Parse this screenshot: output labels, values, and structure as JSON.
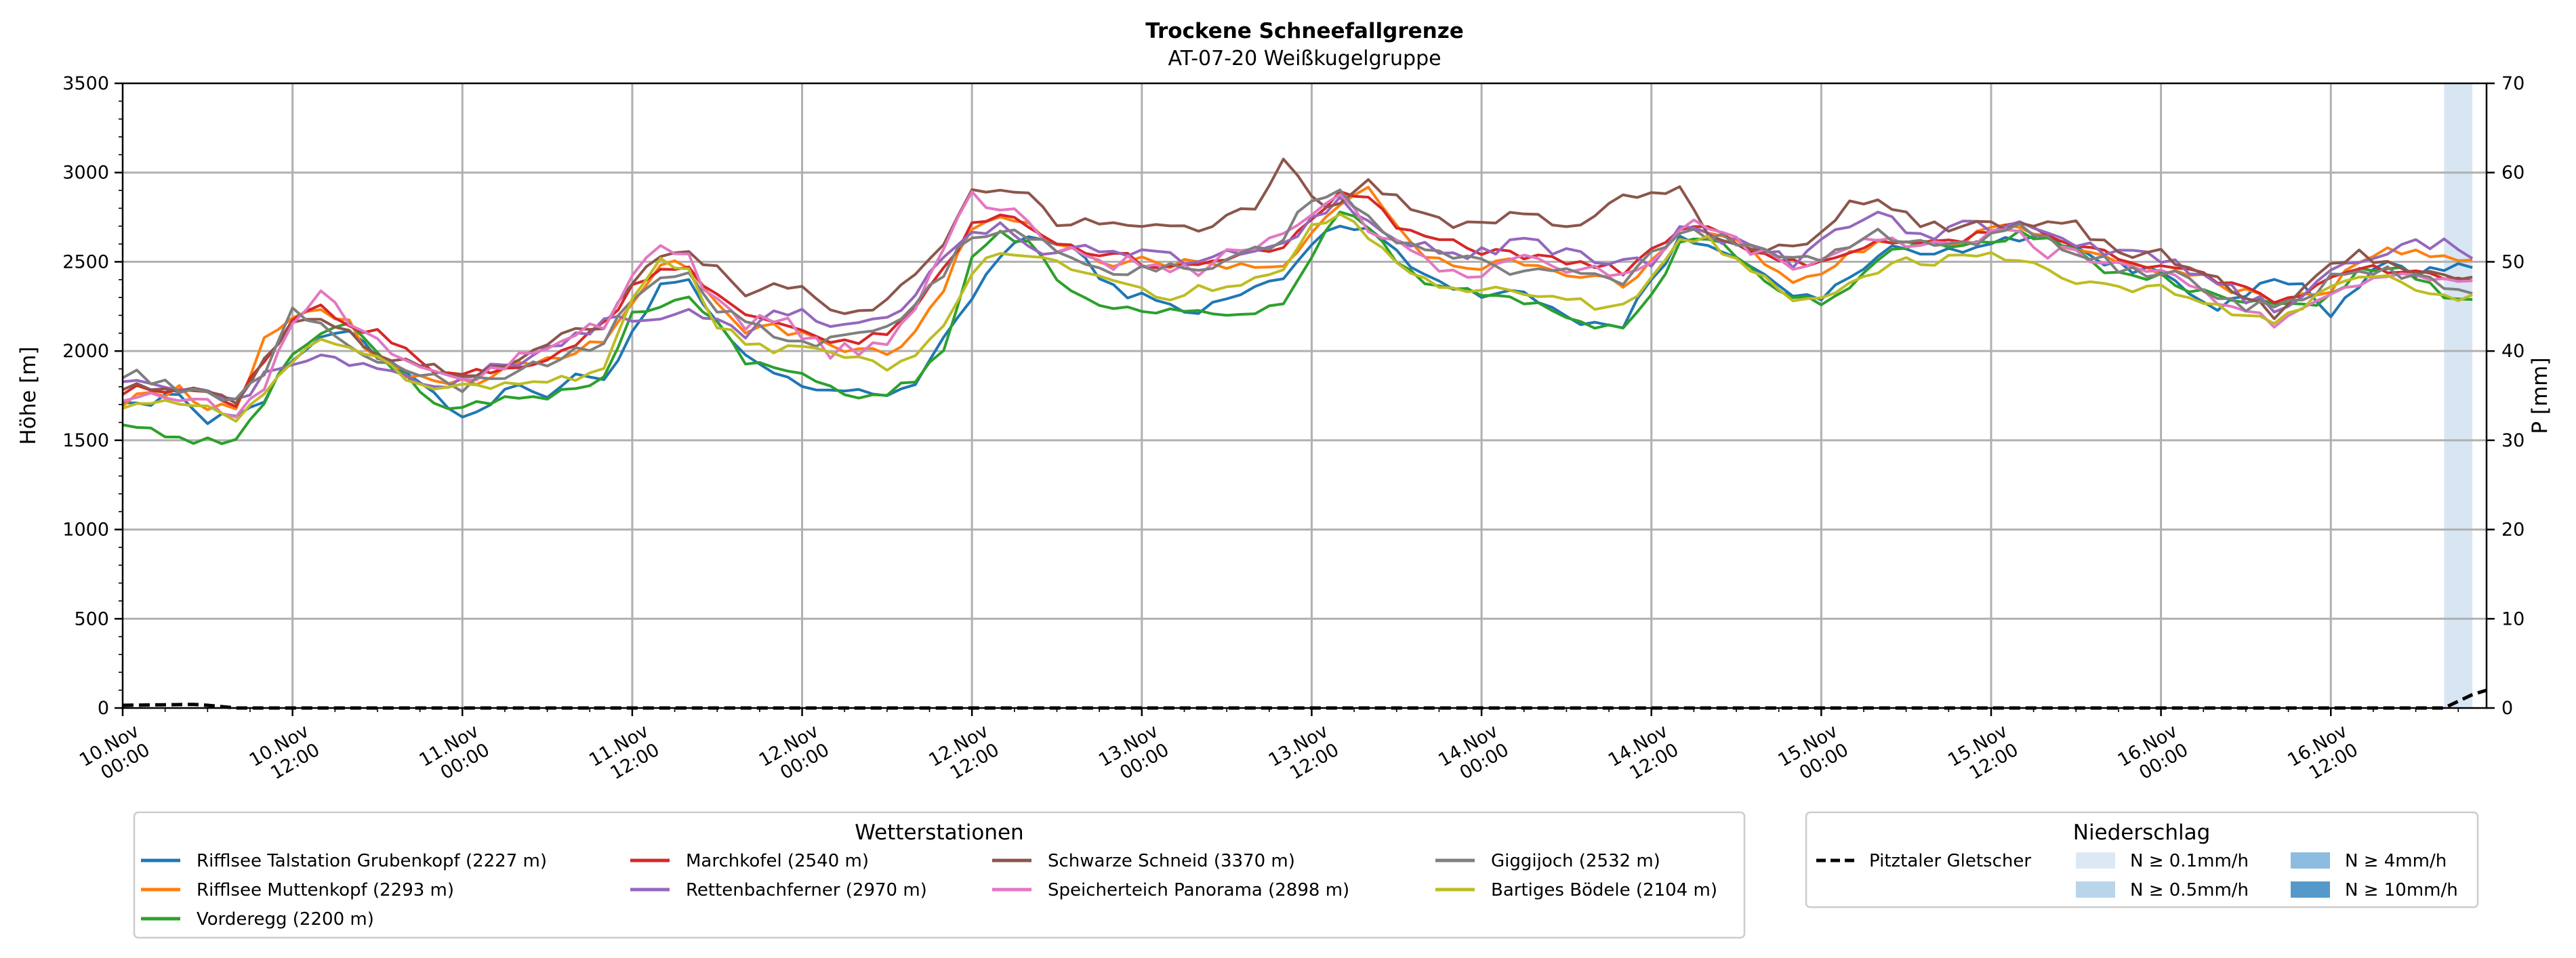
{
  "chart_data": {
    "type": "line",
    "title": "Trockene Schneefallgrenze",
    "subtitle": "AT-07-20 Weißkugelgruppe",
    "ylabel": "Höhe [m]",
    "y2label": "P [mm]",
    "ylim": [
      0,
      3500
    ],
    "y2lim": [
      0,
      70
    ],
    "yticks": [
      "0",
      "500",
      "1000",
      "1500",
      "2000",
      "2500",
      "3000",
      "3500"
    ],
    "y2ticks": [
      "0",
      "10",
      "20",
      "30",
      "40",
      "50",
      "60",
      "70"
    ],
    "xlim_hours": [
      0,
      167
    ],
    "xticks": [
      {
        "hour": 0,
        "line1": "10.Nov",
        "line2": "00:00"
      },
      {
        "hour": 12,
        "line1": "10.Nov",
        "line2": "12:00"
      },
      {
        "hour": 24,
        "line1": "11.Nov",
        "line2": "00:00"
      },
      {
        "hour": 36,
        "line1": "11.Nov",
        "line2": "12:00"
      },
      {
        "hour": 48,
        "line1": "12.Nov",
        "line2": "00:00"
      },
      {
        "hour": 60,
        "line1": "12.Nov",
        "line2": "12:00"
      },
      {
        "hour": 72,
        "line1": "13.Nov",
        "line2": "00:00"
      },
      {
        "hour": 84,
        "line1": "13.Nov",
        "line2": "12:00"
      },
      {
        "hour": 96,
        "line1": "14.Nov",
        "line2": "00:00"
      },
      {
        "hour": 108,
        "line1": "14.Nov",
        "line2": "12:00"
      },
      {
        "hour": 120,
        "line1": "15.Nov",
        "line2": "00:00"
      },
      {
        "hour": 132,
        "line1": "15.Nov",
        "line2": "12:00"
      },
      {
        "hour": 144,
        "line1": "16.Nov",
        "line2": "00:00"
      },
      {
        "hour": 156,
        "line1": "16.Nov",
        "line2": "12:00"
      }
    ],
    "grid": true,
    "anchor_hours": [
      0,
      2,
      4,
      6,
      8,
      10,
      12,
      14,
      16,
      18,
      20,
      22,
      24,
      26,
      28,
      30,
      32,
      34,
      36,
      38,
      40,
      42,
      44,
      46,
      48,
      50,
      52,
      54,
      56,
      58,
      60,
      62,
      64,
      66,
      68,
      70,
      72,
      74,
      76,
      78,
      80,
      82,
      84,
      86,
      88,
      90,
      92,
      94,
      96,
      98,
      100,
      102,
      104,
      106,
      108,
      110,
      112,
      114,
      116,
      118,
      120,
      122,
      124,
      126,
      128,
      130,
      132,
      134,
      136,
      138,
      140,
      142,
      144,
      146,
      148,
      150,
      152,
      154,
      156,
      158,
      160,
      162,
      164,
      166
    ],
    "series": [
      {
        "name": "Rifflsee Talstation Grubenkopf (2227 m)",
        "color": "#1f77b4",
        "jitter": 30,
        "values": [
          1740,
          1700,
          1760,
          1620,
          1650,
          1730,
          1950,
          2050,
          2130,
          1980,
          1900,
          1750,
          1650,
          1700,
          1820,
          1750,
          1850,
          1850,
          2100,
          2350,
          2380,
          2150,
          1950,
          1880,
          1800,
          1760,
          1790,
          1760,
          1820,
          2050,
          2300,
          2550,
          2640,
          2600,
          2520,
          2350,
          2300,
          2250,
          2230,
          2280,
          2360,
          2400,
          2600,
          2700,
          2700,
          2550,
          2450,
          2350,
          2300,
          2350,
          2300,
          2200,
          2150,
          2150,
          2400,
          2620,
          2600,
          2550,
          2450,
          2280,
          2300,
          2400,
          2550,
          2580,
          2560,
          2550,
          2600,
          2640,
          2650,
          2580,
          2500,
          2450,
          2450,
          2350,
          2250,
          2300,
          2400,
          2350,
          2200,
          2380,
          2480,
          2420,
          2480,
          2480
        ]
      },
      {
        "name": "Rifflsee Muttenkopf (2293 m)",
        "color": "#ff7f0e",
        "jitter": 30,
        "values": [
          1720,
          1760,
          1780,
          1700,
          1650,
          2050,
          2200,
          2250,
          2150,
          1950,
          1880,
          1850,
          1820,
          1860,
          1920,
          1950,
          2000,
          2050,
          2250,
          2500,
          2480,
          2250,
          2100,
          2150,
          2080,
          2020,
          2000,
          1990,
          2100,
          2350,
          2700,
          2750,
          2720,
          2600,
          2550,
          2500,
          2520,
          2480,
          2500,
          2450,
          2480,
          2500,
          2650,
          2800,
          2900,
          2700,
          2550,
          2450,
          2480,
          2520,
          2450,
          2450,
          2400,
          2380,
          2500,
          2700,
          2680,
          2620,
          2500,
          2400,
          2450,
          2550,
          2620,
          2600,
          2600,
          2620,
          2700,
          2720,
          2620,
          2580,
          2520,
          2480,
          2450,
          2420,
          2380,
          2320,
          2260,
          2300,
          2350,
          2500,
          2550,
          2550,
          2520,
          2480
        ]
      },
      {
        "name": "Vorderegg (2200 m)",
        "color": "#2ca02c",
        "jitter": 25,
        "values": [
          1610,
          1550,
          1520,
          1490,
          1500,
          1700,
          2000,
          2100,
          2150,
          2000,
          1850,
          1700,
          1680,
          1720,
          1750,
          1750,
          1780,
          1850,
          2200,
          2250,
          2300,
          2150,
          1950,
          1900,
          1880,
          1800,
          1760,
          1760,
          1850,
          2000,
          2550,
          2650,
          2620,
          2400,
          2300,
          2250,
          2230,
          2220,
          2210,
          2190,
          2230,
          2260,
          2500,
          2800,
          2700,
          2500,
          2400,
          2350,
          2300,
          2300,
          2250,
          2180,
          2150,
          2150,
          2300,
          2600,
          2650,
          2550,
          2400,
          2300,
          2280,
          2350,
          2500,
          2600,
          2600,
          2580,
          2620,
          2650,
          2650,
          2550,
          2450,
          2400,
          2420,
          2350,
          2300,
          2280,
          2250,
          2250,
          2300,
          2450,
          2480,
          2420,
          2300,
          2280
        ]
      },
      {
        "name": "Marchkofel (2540 m)",
        "color": "#d62728",
        "jitter": 25,
        "values": [
          1780,
          1800,
          1760,
          1750,
          1700,
          1950,
          2150,
          2250,
          2150,
          2100,
          2000,
          1900,
          1880,
          1900,
          1900,
          1950,
          2050,
          2150,
          2350,
          2450,
          2450,
          2300,
          2200,
          2150,
          2100,
          2050,
          2050,
          2100,
          2250,
          2450,
          2700,
          2770,
          2700,
          2600,
          2550,
          2550,
          2500,
          2480,
          2500,
          2500,
          2550,
          2600,
          2750,
          2900,
          2850,
          2700,
          2620,
          2600,
          2550,
          2550,
          2520,
          2500,
          2480,
          2450,
          2550,
          2700,
          2680,
          2600,
          2550,
          2500,
          2480,
          2550,
          2600,
          2620,
          2620,
          2620,
          2680,
          2700,
          2650,
          2580,
          2550,
          2500,
          2480,
          2450,
          2400,
          2350,
          2250,
          2300,
          2400,
          2480,
          2450,
          2450,
          2420,
          2400
        ]
      },
      {
        "name": "Rettenbachferner (2970 m)",
        "color": "#9467bd",
        "jitter": 35,
        "values": [
          1860,
          1830,
          1780,
          1750,
          1700,
          1850,
          1900,
          1950,
          1950,
          1900,
          1850,
          1800,
          1820,
          1900,
          1950,
          2000,
          2100,
          2150,
          2200,
          2150,
          2250,
          2150,
          2100,
          2200,
          2250,
          2150,
          2150,
          2200,
          2300,
          2550,
          2650,
          2700,
          2600,
          2550,
          2600,
          2550,
          2550,
          2520,
          2500,
          2550,
          2550,
          2600,
          2750,
          2850,
          2750,
          2650,
          2580,
          2550,
          2550,
          2600,
          2600,
          2550,
          2500,
          2480,
          2500,
          2700,
          2650,
          2600,
          2550,
          2500,
          2600,
          2700,
          2800,
          2650,
          2650,
          2700,
          2700,
          2700,
          2650,
          2600,
          2550,
          2550,
          2520,
          2450,
          2380,
          2300,
          2250,
          2300,
          2450,
          2500,
          2550,
          2600,
          2600,
          2550
        ]
      },
      {
        "name": "Schwarze Schneid (3370 m)",
        "color": "#8c564b",
        "jitter": 30,
        "values": [
          1810,
          1780,
          1800,
          1750,
          1700,
          1950,
          2150,
          2200,
          2100,
          2000,
          1950,
          1900,
          1850,
          1900,
          1950,
          2050,
          2100,
          2150,
          2400,
          2550,
          2550,
          2450,
          2300,
          2350,
          2350,
          2250,
          2200,
          2300,
          2400,
          2600,
          2900,
          2920,
          2900,
          2700,
          2750,
          2700,
          2700,
          2700,
          2650,
          2750,
          2800,
          3100,
          2850,
          2800,
          2950,
          2850,
          2750,
          2720,
          2720,
          2750,
          2750,
          2700,
          2750,
          2850,
          2900,
          2900,
          2650,
          2600,
          2550,
          2600,
          2650,
          2850,
          2850,
          2750,
          2700,
          2700,
          2700,
          2700,
          2700,
          2700,
          2600,
          2550,
          2550,
          2450,
          2400,
          2300,
          2200,
          2350,
          2500,
          2550,
          2500,
          2450,
          2420,
          2400
        ]
      },
      {
        "name": "Speicherteich Panorama (2898 m)",
        "color": "#e377c2",
        "jitter": 45,
        "values": [
          1760,
          1740,
          1720,
          1700,
          1650,
          1800,
          2150,
          2350,
          2150,
          2050,
          1950,
          1900,
          1850,
          1900,
          1950,
          2000,
          2100,
          2150,
          2450,
          2600,
          2500,
          2250,
          2150,
          2200,
          2100,
          2000,
          2000,
          2050,
          2250,
          2550,
          2900,
          2780,
          2750,
          2550,
          2550,
          2500,
          2500,
          2480,
          2450,
          2550,
          2600,
          2650,
          2800,
          2900,
          2700,
          2600,
          2500,
          2450,
          2450,
          2550,
          2500,
          2480,
          2450,
          2400,
          2500,
          2700,
          2700,
          2600,
          2550,
          2450,
          2500,
          2600,
          2600,
          2600,
          2600,
          2650,
          2650,
          2650,
          2550,
          2550,
          2500,
          2480,
          2450,
          2380,
          2300,
          2200,
          2150,
          2250,
          2350,
          2400,
          2400,
          2420,
          2420,
          2400
        ]
      },
      {
        "name": "Giggijoch (2532 m)",
        "color": "#7f7f7f",
        "jitter": 35,
        "values": [
          1880,
          1850,
          1800,
          1750,
          1700,
          1900,
          2250,
          2150,
          2050,
          1950,
          1900,
          1850,
          1800,
          1850,
          1900,
          1950,
          2000,
          2050,
          2300,
          2400,
          2450,
          2250,
          2150,
          2100,
          2050,
          2050,
          2100,
          2150,
          2250,
          2450,
          2650,
          2700,
          2650,
          2550,
          2500,
          2450,
          2450,
          2480,
          2450,
          2500,
          2550,
          2650,
          2850,
          2900,
          2750,
          2600,
          2550,
          2550,
          2500,
          2450,
          2450,
          2450,
          2400,
          2350,
          2550,
          2650,
          2650,
          2600,
          2550,
          2500,
          2500,
          2600,
          2650,
          2600,
          2600,
          2600,
          2650,
          2700,
          2650,
          2550,
          2500,
          2450,
          2450,
          2380,
          2300,
          2250,
          2250,
          2300,
          2400,
          2450,
          2450,
          2400,
          2380,
          2350
        ]
      },
      {
        "name": "Bartiges Bödele (2104 m)",
        "color": "#bcbd22",
        "jitter": 25,
        "values": [
          1700,
          1720,
          1700,
          1680,
          1600,
          1750,
          1950,
          2050,
          2000,
          1950,
          1850,
          1800,
          1800,
          1800,
          1800,
          1830,
          1850,
          1900,
          2300,
          2500,
          2450,
          2150,
          2050,
          2000,
          2050,
          1980,
          1950,
          1900,
          1950,
          2150,
          2450,
          2550,
          2550,
          2500,
          2450,
          2400,
          2350,
          2300,
          2350,
          2350,
          2400,
          2450,
          2700,
          2750,
          2650,
          2500,
          2400,
          2350,
          2350,
          2350,
          2300,
          2300,
          2250,
          2250,
          2400,
          2650,
          2620,
          2500,
          2400,
          2300,
          2300,
          2400,
          2450,
          2500,
          2500,
          2550,
          2550,
          2500,
          2450,
          2400,
          2380,
          2350,
          2350,
          2300,
          2250,
          2200,
          2150,
          2250,
          2350,
          2400,
          2400,
          2350,
          2300,
          2300
        ]
      }
    ],
    "precipitation": {
      "name": "Pitztaler Gletscher",
      "color": "#000000",
      "points": [
        [
          0,
          0.3
        ],
        [
          5,
          0.4
        ],
        [
          6,
          0.3
        ],
        [
          8,
          0
        ],
        [
          164,
          0
        ],
        [
          166,
          1.5
        ],
        [
          167,
          2
        ]
      ]
    },
    "precip_bands": [
      {
        "start_hour": 164,
        "end_hour": 166,
        "color": "#d8e6f3"
      }
    ],
    "legend_stations": {
      "title": "Wetterstationen",
      "placement": "bottom-center"
    },
    "legend_precip": {
      "title": "Niederschlag",
      "placement": "bottom-right",
      "line_label": "Pitztaler Gletscher",
      "patches": [
        {
          "label": "N ≥ 0.1mm/h",
          "color": "#dce9f5"
        },
        {
          "label": "N ≥ 4mm/h",
          "color": "#8cbde0"
        },
        {
          "label": "N ≥ 0.5mm/h",
          "color": "#bad4ea"
        },
        {
          "label": "N ≥ 10mm/h",
          "color": "#5599cb"
        }
      ]
    }
  }
}
